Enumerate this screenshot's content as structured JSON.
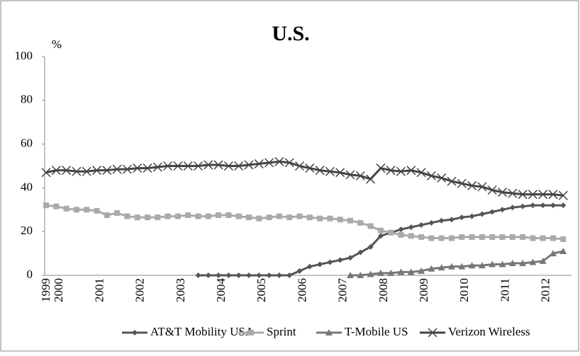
{
  "chart_data": {
    "type": "line",
    "title": "U.S.",
    "y_label": "%",
    "categories": [
      "1999",
      "2000",
      null,
      null,
      null,
      "2001",
      null,
      null,
      null,
      "2002",
      null,
      null,
      null,
      "2003",
      null,
      null,
      null,
      "2004",
      null,
      null,
      null,
      "2005",
      null,
      null,
      null,
      "2006",
      null,
      null,
      null,
      "2007",
      null,
      null,
      null,
      "2008",
      null,
      null,
      null,
      "2009",
      null,
      null,
      null,
      "2010",
      null,
      null,
      null,
      "2011",
      null,
      null,
      null,
      "2012",
      null,
      null
    ],
    "series": [
      {
        "name": "AT&T Mobility USA",
        "color": "#555555",
        "marker": "diamond",
        "values": [
          null,
          null,
          null,
          null,
          null,
          null,
          null,
          null,
          null,
          null,
          null,
          null,
          null,
          null,
          null,
          0,
          0,
          0,
          0,
          0,
          0,
          0,
          0,
          0,
          0,
          2,
          4,
          5,
          6,
          7,
          8,
          10.5,
          13,
          18,
          19.5,
          21,
          22,
          23,
          24,
          25,
          25.5,
          26.5,
          27,
          28,
          29,
          30,
          31,
          31.5,
          32,
          32,
          32,
          32
        ]
      },
      {
        "name": "Sprint",
        "color": "#aaaaaa",
        "marker": "square",
        "values": [
          32,
          31.5,
          30.5,
          30,
          30,
          29.5,
          27.5,
          28.5,
          27,
          26.5,
          26.5,
          26.5,
          27,
          27,
          27.5,
          27,
          27,
          27.5,
          27.5,
          27,
          26.5,
          26,
          26.5,
          27,
          26.5,
          27,
          26.5,
          26,
          26,
          25.5,
          25,
          24,
          22.5,
          20.5,
          19.5,
          18.5,
          18,
          17.5,
          17,
          17,
          17,
          17.5,
          17.5,
          17.5,
          17.5,
          17.5,
          17.5,
          17.5,
          17,
          17,
          17,
          16.5
        ]
      },
      {
        "name": "T-Mobile US",
        "color": "#777777",
        "marker": "triangle",
        "values": [
          null,
          null,
          null,
          null,
          null,
          null,
          null,
          null,
          null,
          null,
          null,
          null,
          null,
          null,
          null,
          null,
          null,
          null,
          null,
          null,
          null,
          null,
          null,
          null,
          null,
          null,
          null,
          null,
          null,
          null,
          0,
          0,
          0.5,
          1,
          1,
          1.5,
          1.5,
          2,
          3,
          3.5,
          4,
          4,
          4.5,
          4.5,
          5,
          5,
          5.5,
          5.5,
          6,
          6.5,
          10,
          11
        ]
      },
      {
        "name": "Verizon Wireless",
        "color": "#444444",
        "marker": "x",
        "values": [
          47,
          48,
          48,
          47.5,
          47.5,
          48,
          48,
          48.5,
          48.5,
          49,
          49,
          49.5,
          50,
          50,
          50,
          50,
          50.5,
          50.5,
          50,
          50,
          50.5,
          51,
          51.5,
          52,
          51.5,
          50,
          49,
          48,
          47.5,
          47,
          46,
          45.5,
          44,
          49,
          48,
          47.5,
          48,
          47,
          45.5,
          44.5,
          43,
          42,
          41,
          40.5,
          39,
          38,
          37.5,
          37,
          37,
          37,
          37,
          36.5
        ]
      }
    ],
    "ylim": [
      0,
      100
    ],
    "yticks": [
      0,
      20,
      40,
      60,
      80,
      100
    ],
    "grid": false,
    "legend": "bottom"
  }
}
